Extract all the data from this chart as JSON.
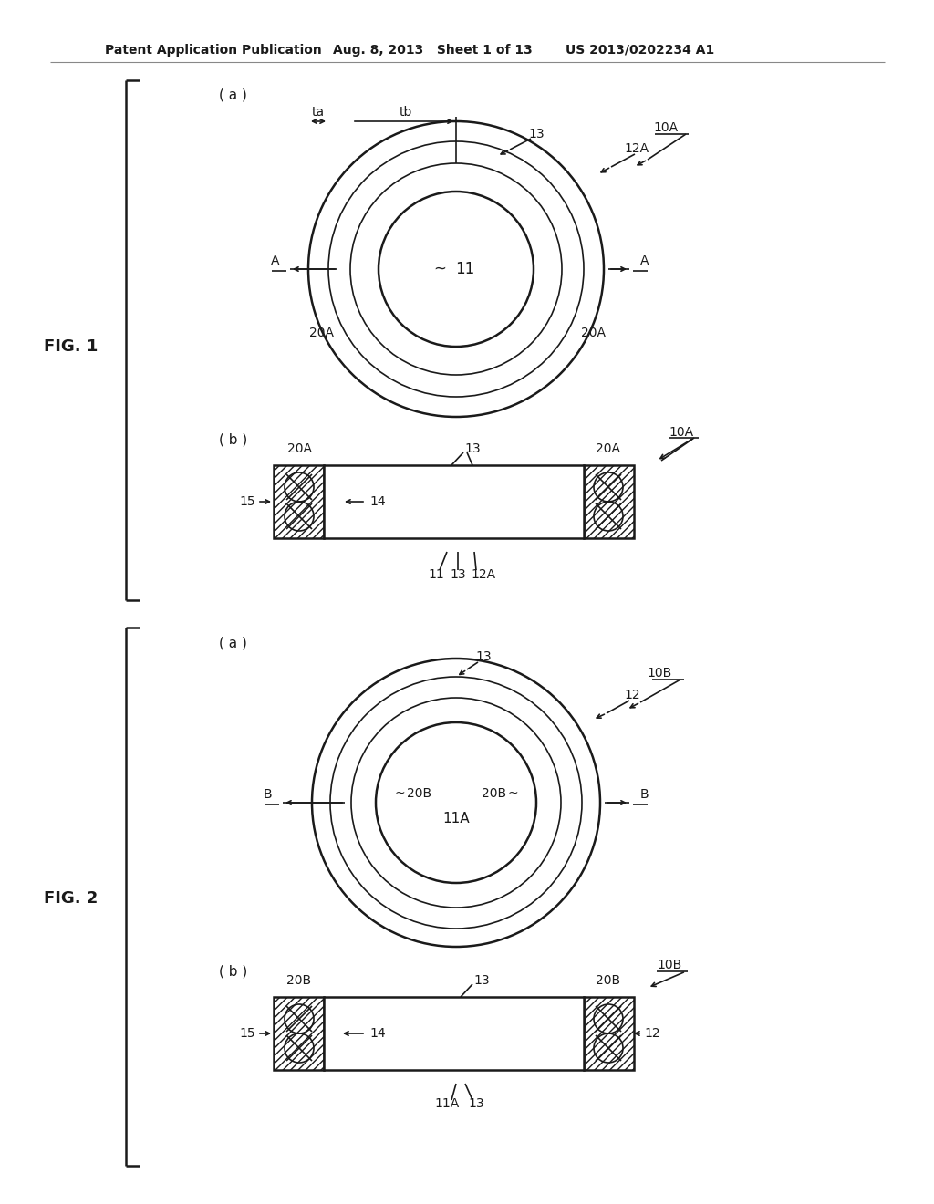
{
  "bg_color": "#ffffff",
  "line_color": "#1a1a1a",
  "header_text1": "Patent Application Publication",
  "header_text2": "Aug. 8, 2013   Sheet 1 of 13",
  "header_text3": "US 2013/0202234 A1",
  "fig1_label": "FIG. 1",
  "fig2_label": "FIG. 2",
  "fig1a_label": "( a )",
  "fig1b_label": "( b )",
  "fig2a_label": "( a )",
  "fig2b_label": "( b )"
}
